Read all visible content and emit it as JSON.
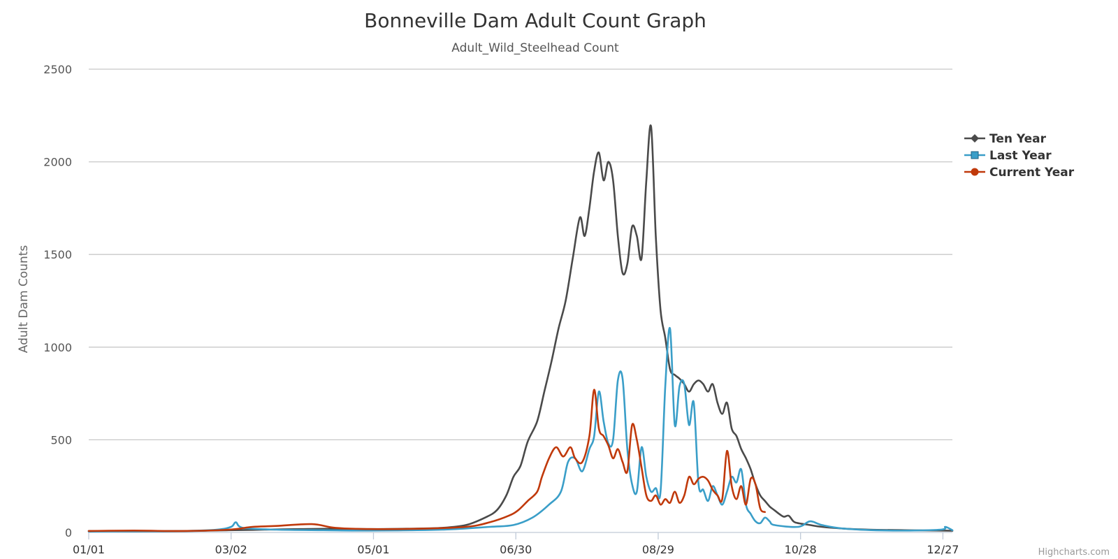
{
  "chart_data": {
    "type": "line",
    "title": "Bonneville Dam Adult Count Graph",
    "subtitle": "Adult_Wild_Steelhead Count",
    "ylabel": "Adult Dam Counts",
    "xlabel": "",
    "x_unit": "day of year",
    "ylim": [
      0,
      2500
    ],
    "xlim": [
      1,
      365
    ],
    "y_ticks": [
      0,
      500,
      1000,
      1500,
      2000,
      2500
    ],
    "y_tick_labels": [
      "0",
      "500",
      "1000",
      "1500",
      "2000",
      "2500"
    ],
    "x_ticks": [
      1,
      61,
      121,
      181,
      241,
      301,
      361
    ],
    "x_tick_labels": [
      "01/01",
      "03/02",
      "05/01",
      "06/30",
      "08/29",
      "10/28",
      "12/27"
    ],
    "grid": true,
    "legend_position": "right",
    "credits": "Highcharts.com",
    "series": [
      {
        "name": "Ten Year",
        "color": "#4a4a4a",
        "marker": "diamond",
        "points": [
          [
            1,
            8
          ],
          [
            20,
            6
          ],
          [
            40,
            7
          ],
          [
            60,
            12
          ],
          [
            75,
            15
          ],
          [
            90,
            18
          ],
          [
            105,
            20
          ],
          [
            120,
            18
          ],
          [
            135,
            20
          ],
          [
            150,
            25
          ],
          [
            160,
            40
          ],
          [
            168,
            80
          ],
          [
            173,
            120
          ],
          [
            177,
            200
          ],
          [
            180,
            300
          ],
          [
            183,
            360
          ],
          [
            186,
            490
          ],
          [
            190,
            600
          ],
          [
            193,
            760
          ],
          [
            196,
            920
          ],
          [
            199,
            1100
          ],
          [
            202,
            1250
          ],
          [
            205,
            1480
          ],
          [
            208,
            1700
          ],
          [
            210,
            1600
          ],
          [
            212,
            1750
          ],
          [
            214,
            1950
          ],
          [
            216,
            2050
          ],
          [
            218,
            1900
          ],
          [
            220,
            2000
          ],
          [
            222,
            1900
          ],
          [
            224,
            1600
          ],
          [
            226,
            1400
          ],
          [
            228,
            1450
          ],
          [
            230,
            1650
          ],
          [
            232,
            1600
          ],
          [
            234,
            1480
          ],
          [
            236,
            1900
          ],
          [
            238,
            2190
          ],
          [
            240,
            1600
          ],
          [
            242,
            1200
          ],
          [
            244,
            1050
          ],
          [
            246,
            880
          ],
          [
            248,
            850
          ],
          [
            250,
            830
          ],
          [
            252,
            800
          ],
          [
            254,
            760
          ],
          [
            256,
            800
          ],
          [
            258,
            820
          ],
          [
            260,
            800
          ],
          [
            262,
            760
          ],
          [
            264,
            800
          ],
          [
            266,
            700
          ],
          [
            268,
            640
          ],
          [
            270,
            700
          ],
          [
            272,
            560
          ],
          [
            274,
            520
          ],
          [
            276,
            450
          ],
          [
            278,
            400
          ],
          [
            280,
            340
          ],
          [
            282,
            260
          ],
          [
            284,
            200
          ],
          [
            286,
            170
          ],
          [
            288,
            140
          ],
          [
            290,
            120
          ],
          [
            292,
            100
          ],
          [
            294,
            85
          ],
          [
            296,
            90
          ],
          [
            298,
            60
          ],
          [
            300,
            50
          ],
          [
            305,
            40
          ],
          [
            310,
            30
          ],
          [
            320,
            20
          ],
          [
            330,
            15
          ],
          [
            345,
            12
          ],
          [
            360,
            10
          ],
          [
            365,
            9
          ]
        ]
      },
      {
        "name": "Last Year",
        "color": "#3a9ec8",
        "marker": "square",
        "points": [
          [
            1,
            5
          ],
          [
            40,
            8
          ],
          [
            55,
            15
          ],
          [
            61,
            30
          ],
          [
            63,
            55
          ],
          [
            66,
            25
          ],
          [
            80,
            15
          ],
          [
            100,
            12
          ],
          [
            120,
            10
          ],
          [
            150,
            15
          ],
          [
            170,
            30
          ],
          [
            180,
            40
          ],
          [
            188,
            80
          ],
          [
            195,
            150
          ],
          [
            200,
            220
          ],
          [
            203,
            380
          ],
          [
            206,
            400
          ],
          [
            209,
            330
          ],
          [
            212,
            450
          ],
          [
            214,
            520
          ],
          [
            216,
            760
          ],
          [
            218,
            600
          ],
          [
            220,
            480
          ],
          [
            222,
            500
          ],
          [
            224,
            820
          ],
          [
            226,
            830
          ],
          [
            228,
            450
          ],
          [
            230,
            260
          ],
          [
            232,
            220
          ],
          [
            234,
            460
          ],
          [
            236,
            300
          ],
          [
            238,
            220
          ],
          [
            240,
            240
          ],
          [
            242,
            220
          ],
          [
            244,
            790
          ],
          [
            246,
            1100
          ],
          [
            248,
            580
          ],
          [
            250,
            790
          ],
          [
            252,
            800
          ],
          [
            254,
            580
          ],
          [
            256,
            700
          ],
          [
            258,
            260
          ],
          [
            260,
            230
          ],
          [
            262,
            170
          ],
          [
            264,
            250
          ],
          [
            266,
            200
          ],
          [
            268,
            150
          ],
          [
            270,
            220
          ],
          [
            272,
            300
          ],
          [
            274,
            270
          ],
          [
            276,
            340
          ],
          [
            278,
            150
          ],
          [
            280,
            100
          ],
          [
            282,
            60
          ],
          [
            284,
            50
          ],
          [
            286,
            80
          ],
          [
            288,
            60
          ],
          [
            290,
            40
          ],
          [
            300,
            30
          ],
          [
            305,
            60
          ],
          [
            310,
            40
          ],
          [
            320,
            20
          ],
          [
            340,
            10
          ],
          [
            360,
            15
          ],
          [
            362,
            30
          ],
          [
            365,
            12
          ]
        ]
      },
      {
        "name": "Current Year",
        "color": "#c0390b",
        "marker": "circle",
        "points": [
          [
            1,
            8
          ],
          [
            20,
            10
          ],
          [
            40,
            8
          ],
          [
            60,
            15
          ],
          [
            70,
            30
          ],
          [
            80,
            35
          ],
          [
            95,
            45
          ],
          [
            105,
            25
          ],
          [
            120,
            18
          ],
          [
            140,
            20
          ],
          [
            160,
            30
          ],
          [
            170,
            55
          ],
          [
            178,
            90
          ],
          [
            182,
            120
          ],
          [
            186,
            170
          ],
          [
            190,
            220
          ],
          [
            192,
            300
          ],
          [
            195,
            400
          ],
          [
            198,
            460
          ],
          [
            201,
            410
          ],
          [
            204,
            460
          ],
          [
            206,
            400
          ],
          [
            209,
            380
          ],
          [
            212,
            520
          ],
          [
            214,
            770
          ],
          [
            216,
            560
          ],
          [
            218,
            520
          ],
          [
            220,
            470
          ],
          [
            222,
            400
          ],
          [
            224,
            450
          ],
          [
            226,
            380
          ],
          [
            228,
            330
          ],
          [
            230,
            580
          ],
          [
            232,
            500
          ],
          [
            234,
            350
          ],
          [
            236,
            200
          ],
          [
            238,
            170
          ],
          [
            240,
            200
          ],
          [
            242,
            150
          ],
          [
            244,
            180
          ],
          [
            246,
            160
          ],
          [
            248,
            220
          ],
          [
            250,
            160
          ],
          [
            252,
            200
          ],
          [
            254,
            300
          ],
          [
            256,
            260
          ],
          [
            258,
            290
          ],
          [
            260,
            300
          ],
          [
            262,
            280
          ],
          [
            264,
            230
          ],
          [
            266,
            200
          ],
          [
            268,
            180
          ],
          [
            270,
            440
          ],
          [
            272,
            250
          ],
          [
            274,
            180
          ],
          [
            276,
            250
          ],
          [
            278,
            150
          ],
          [
            280,
            290
          ],
          [
            282,
            260
          ],
          [
            284,
            130
          ],
          [
            286,
            110
          ]
        ]
      }
    ]
  }
}
